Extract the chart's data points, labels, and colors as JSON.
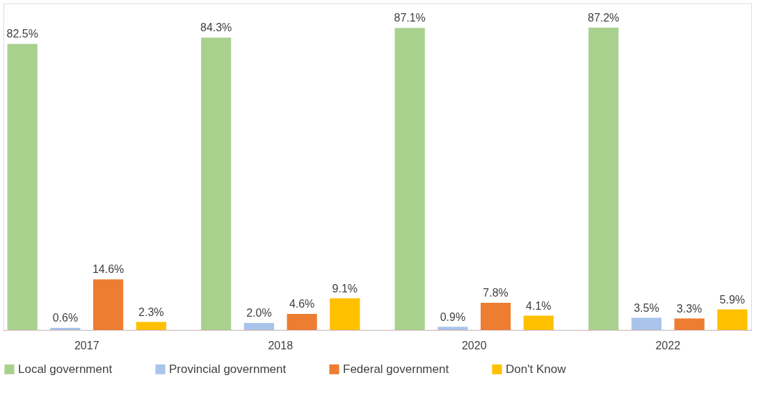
{
  "chart_data": {
    "type": "bar",
    "categories": [
      "2017",
      "2018",
      "2020",
      "2022"
    ],
    "series": [
      {
        "name": "Local government",
        "color": "#a9d18e",
        "values": [
          82.5,
          84.3,
          87.1,
          87.2
        ],
        "value_labels": [
          "82.5%",
          "84.3%",
          "87.1%",
          "87.2%"
        ]
      },
      {
        "name": "Provincial government",
        "color": "#a9c4eb",
        "values": [
          0.6,
          2.0,
          0.9,
          3.5
        ],
        "value_labels": [
          "0.6%",
          "2.0%",
          "0.9%",
          "3.5%"
        ]
      },
      {
        "name": "Federal government",
        "color": "#ed7d31",
        "values": [
          14.6,
          4.6,
          7.8,
          3.3
        ],
        "value_labels": [
          "14.6%",
          "4.6%",
          "7.8%",
          "3.3%"
        ]
      },
      {
        "name": "Don't Know",
        "color": "#ffc000",
        "values": [
          2.3,
          9.1,
          4.1,
          5.9
        ],
        "value_labels": [
          "2.3%",
          "9.1%",
          "4.1%",
          "5.9%"
        ]
      }
    ],
    "legend": "bottom",
    "grid": false
  }
}
